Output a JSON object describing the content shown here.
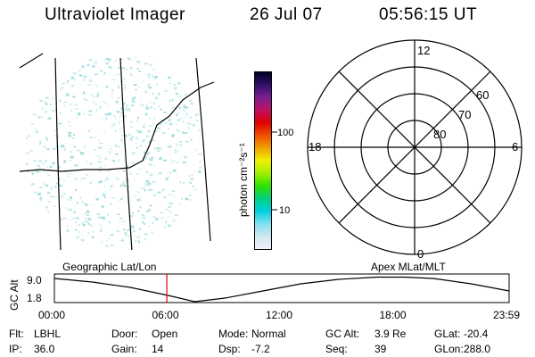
{
  "header": {
    "instrument": "Ultraviolet Imager",
    "date": "26 Jul 07",
    "time": "05:56:15 UT"
  },
  "colorbar": {
    "unit_label": "photon cm⁻²s⁻¹",
    "tick_labels": [
      "100",
      "10"
    ],
    "gradient_stops": [
      "#000020",
      "#30106a",
      "#7a2090",
      "#c01060",
      "#e00000",
      "#f05000",
      "#f0a000",
      "#f0f000",
      "#a0f000",
      "#30e000",
      "#00d080",
      "#00d0e0",
      "#80e0f0",
      "#d0e8f0",
      "#f0f0f8"
    ]
  },
  "geo_panel": {
    "label": "Geographic Lat/Lon",
    "dot_color": "#9fdcdc"
  },
  "polar_panel": {
    "label": "Apex MLat/MLT",
    "mlt_labels": {
      "top": "12",
      "left": "18",
      "right": "6",
      "bottom": "0"
    },
    "lat_labels": [
      "60",
      "70",
      "80"
    ]
  },
  "altitude_plot": {
    "ylabel": "GC Alt",
    "y_ticks": [
      "9.0",
      "1.8"
    ],
    "x_ticks": [
      "00:00",
      "06:00",
      "12:00",
      "18:00",
      "23:59"
    ],
    "marker_time": "05:56",
    "marker_color": "#e00000"
  },
  "footer": {
    "row1": [
      {
        "key": "Flt:",
        "value": "LBHL"
      },
      {
        "key": "Door:",
        "value": "Open"
      },
      {
        "key": "Mode:",
        "value": "Normal"
      },
      {
        "key": "GC Alt:",
        "value": "3.9 Re"
      },
      {
        "key": "GLat:",
        "value": "-20.4"
      }
    ],
    "row2": [
      {
        "key": "IP:",
        "value": "36.0"
      },
      {
        "key": "Gain:",
        "value": "14"
      },
      {
        "key": "Dsp:",
        "value": "-7.2"
      },
      {
        "key": "Seq:",
        "value": "39"
      },
      {
        "key": "GLon:",
        "value": "288.0"
      }
    ]
  }
}
